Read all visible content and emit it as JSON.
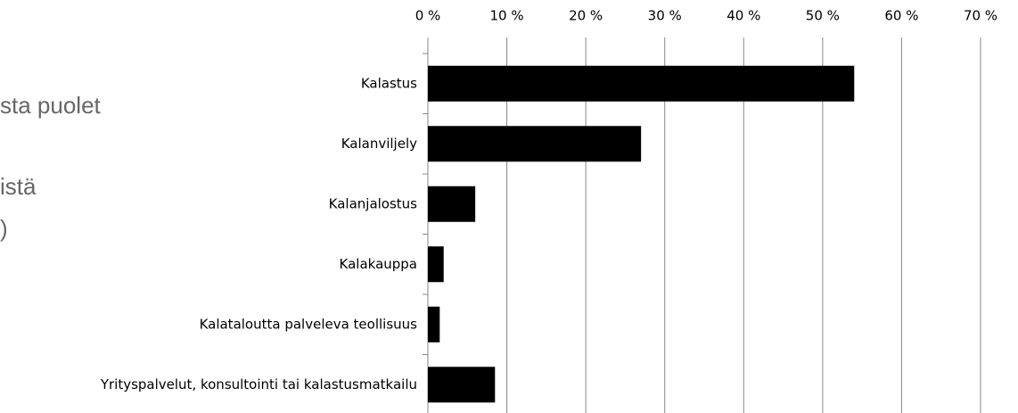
{
  "chart_data": {
    "type": "barh",
    "annotations": [
      "sta puolet",
      "istä",
      ")"
    ],
    "categories": [
      "Kalastus",
      "Kalanviljely",
      "Kalanjalostus",
      "Kalakauppa",
      "Kalataloutta palveleva teollisuus",
      "Yrityspalvelut, konsultointi tai kalastusmatkailu"
    ],
    "values": [
      54,
      27,
      6,
      2,
      1.5,
      8.5
    ],
    "color": "#000000",
    "xlim": [
      0,
      70
    ],
    "xticks": [
      {
        "value": 0,
        "label": "0 %"
      },
      {
        "value": 10,
        "label": "10 %"
      },
      {
        "value": 20,
        "label": "20 %"
      },
      {
        "value": 30,
        "label": "30 %"
      },
      {
        "value": 40,
        "label": "40 %"
      },
      {
        "value": 50,
        "label": "50 %"
      },
      {
        "value": 60,
        "label": "60 %"
      },
      {
        "value": 70,
        "label": "70 %"
      }
    ],
    "grid": true
  }
}
